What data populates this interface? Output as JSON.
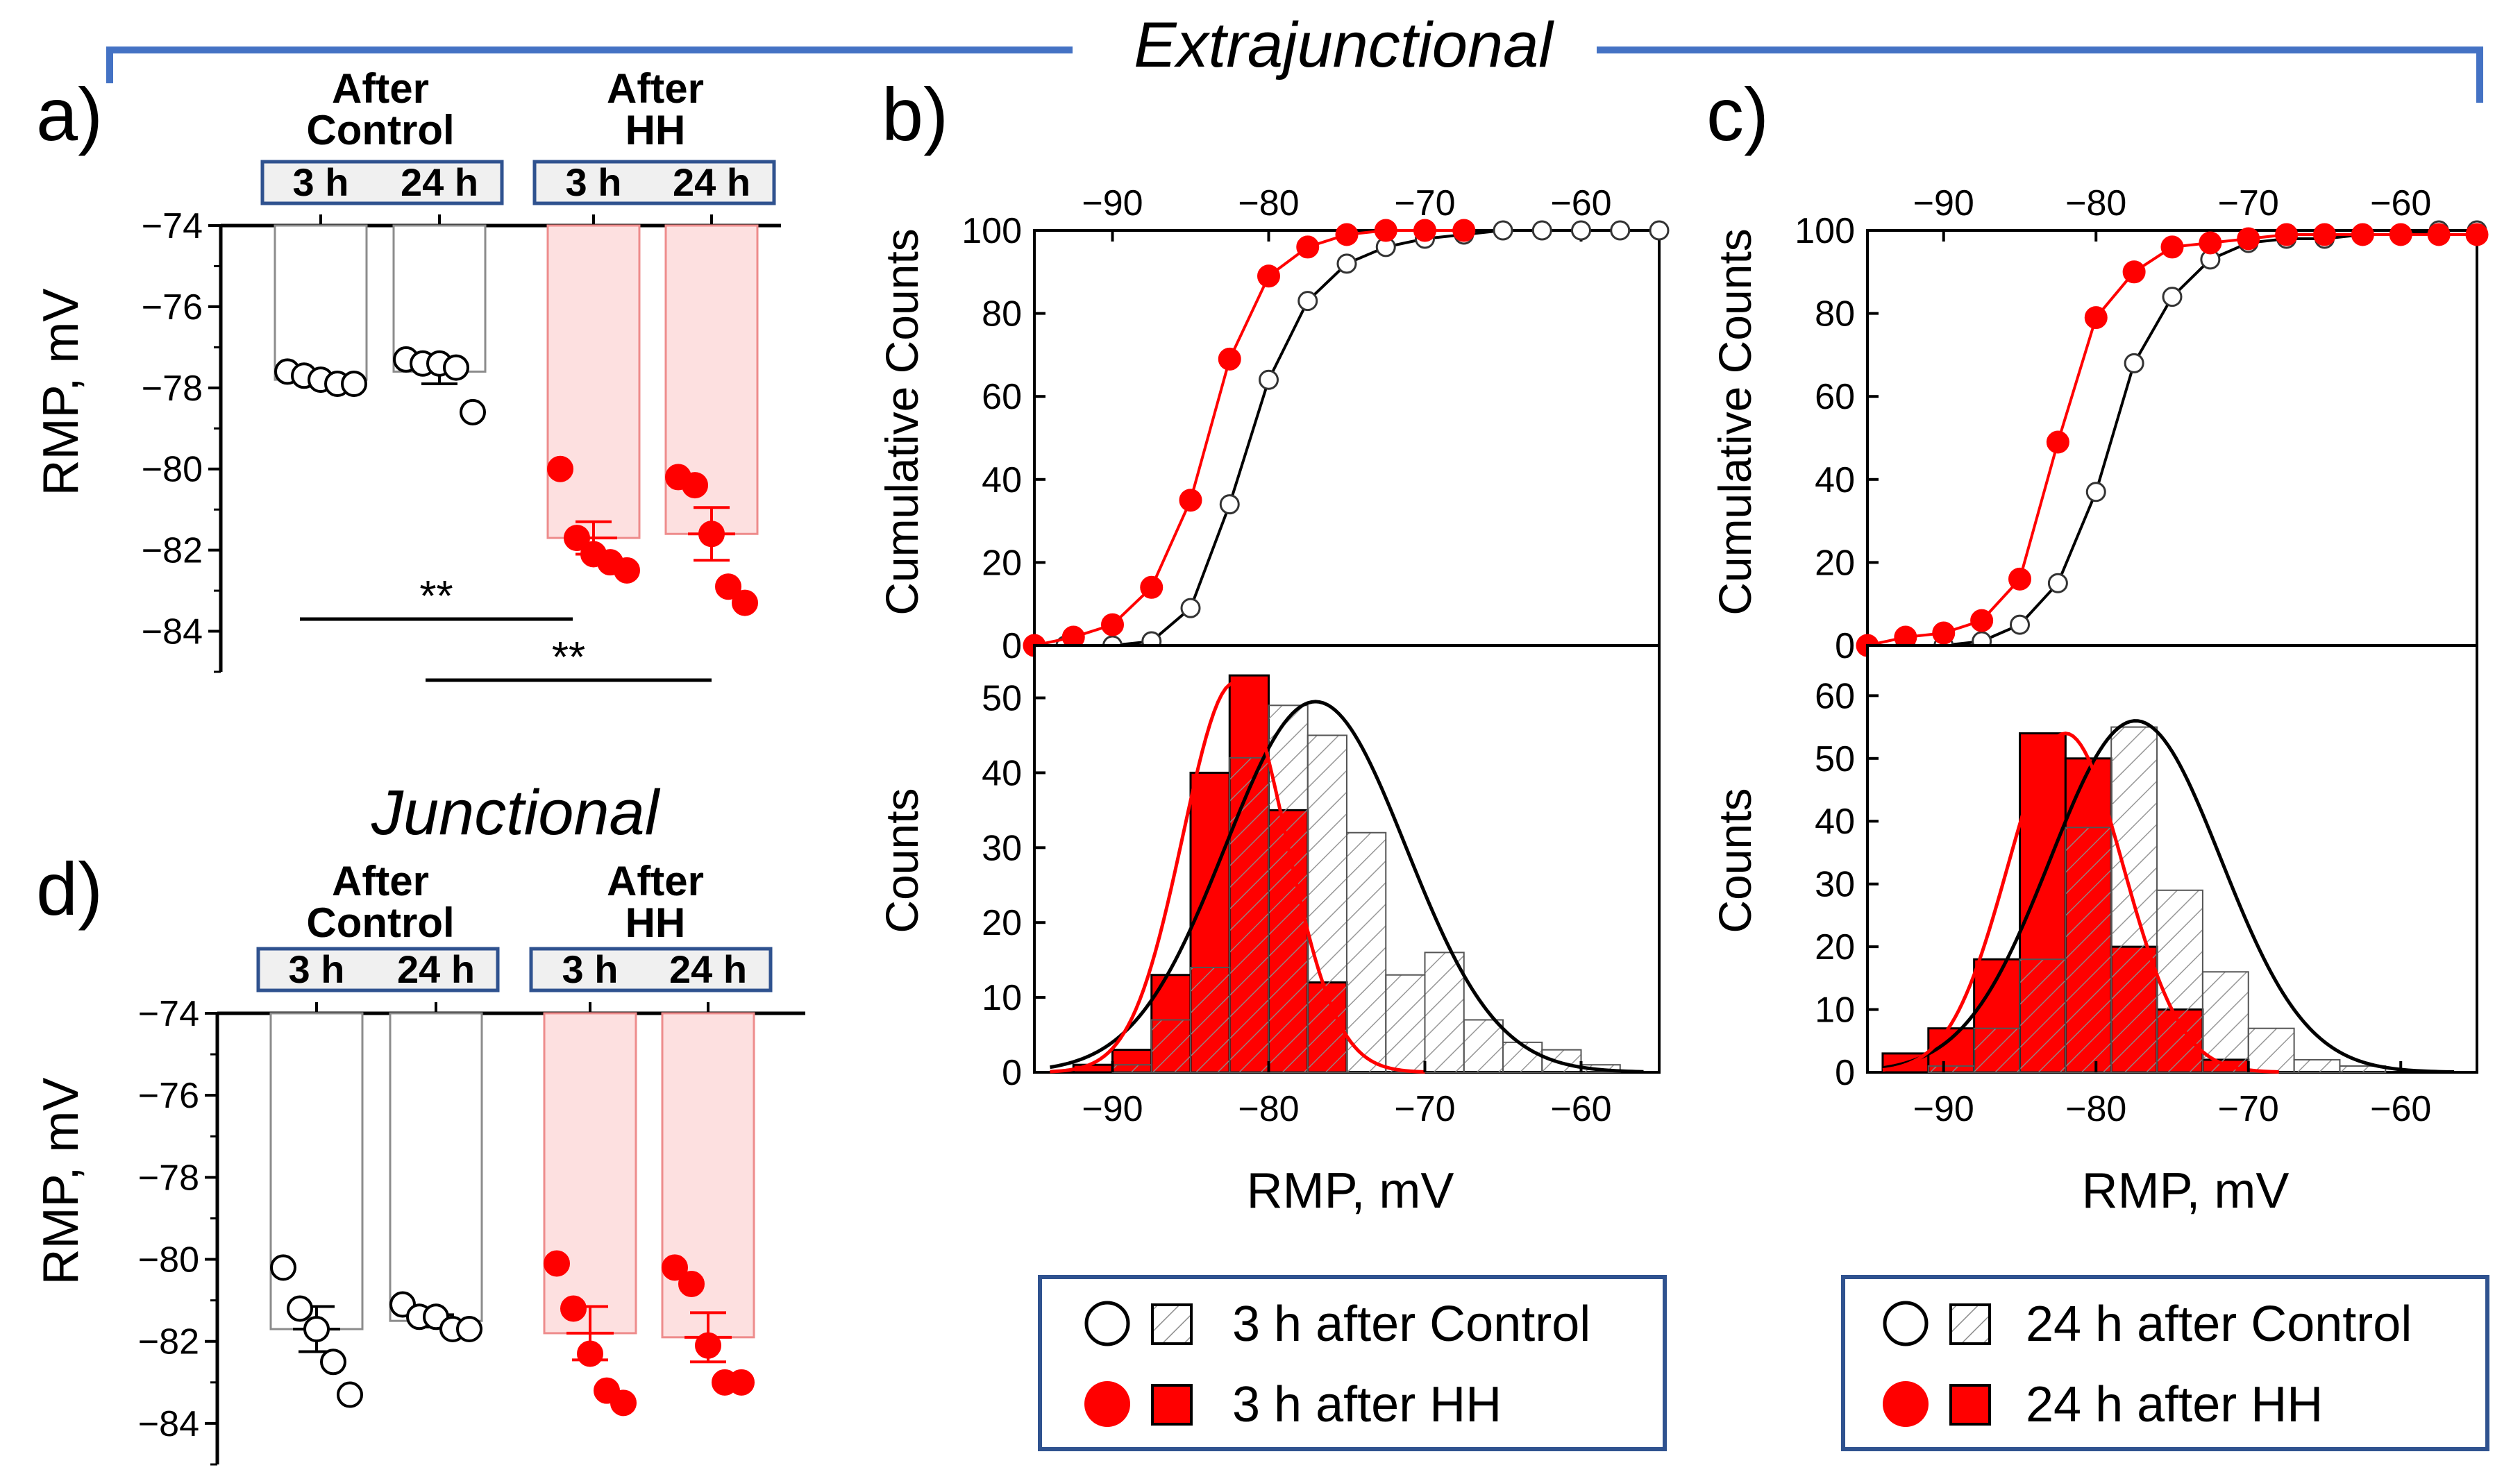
{
  "header": {
    "extrajunctional_title": "Extrajunctional",
    "junctional_title": "Junctional"
  },
  "colors": {
    "red": "#ff0000",
    "pink_fill": "#fde0e0",
    "pink_edge": "#ee8c8c",
    "bracket_blue": "#4472c4",
    "box_blue": "#2f528f",
    "box_fill": "#f0f0f0",
    "hatch_gray": "#8c8c8c",
    "black": "#000000"
  },
  "chart_data": [
    {
      "id": "a",
      "panel_label": "a)",
      "type": "bar",
      "ylabel": "RMP, mV",
      "ylim": [
        -85,
        -74
      ],
      "yticks": [
        -74,
        -76,
        -78,
        -80,
        -82,
        -84
      ],
      "group_titles": [
        {
          "line1": "After",
          "line2": "Control"
        },
        {
          "line1": "After",
          "line2": "HH"
        }
      ],
      "time_labels": [
        "3 h",
        "24 h"
      ],
      "bars": [
        {
          "group": "After Control",
          "time": "3 h",
          "mean": -77.8,
          "sem": 0.1,
          "points": [
            -77.6,
            -77.7,
            -77.8,
            -77.9,
            -77.9
          ],
          "filled": false
        },
        {
          "group": "After Control",
          "time": "24 h",
          "mean": -77.6,
          "sem": 0.3,
          "points": [
            -77.3,
            -77.4,
            -77.4,
            -77.5,
            -78.6
          ],
          "filled": false
        },
        {
          "group": "After HH",
          "time": "3 h",
          "mean": -81.7,
          "sem": 0.4,
          "points": [
            -80.0,
            -81.7,
            -82.1,
            -82.3,
            -82.5
          ],
          "filled": true
        },
        {
          "group": "After HH",
          "time": "24 h",
          "mean": -81.6,
          "sem": 0.65,
          "points": [
            -80.2,
            -80.4,
            -81.6,
            -82.9,
            -83.3
          ],
          "filled": true
        }
      ],
      "significance": [
        {
          "label": "**",
          "from": 0,
          "to": 2
        },
        {
          "label": "**",
          "from": 1,
          "to": 3
        }
      ]
    },
    {
      "id": "b_top",
      "panel_label": "b)",
      "type": "line",
      "xlabel": "RMP, mV",
      "ylabel": "Cumulative Counts",
      "xlim": [
        -95,
        -55
      ],
      "ylim": [
        0,
        100
      ],
      "xticks": [
        -90,
        -80,
        -70,
        -60
      ],
      "yticks": [
        0,
        20,
        40,
        60,
        80,
        100
      ],
      "series": [
        {
          "name": "3 h after Control",
          "color": "#000000",
          "filled": false,
          "x": [
            -93,
            -90,
            -87.5,
            -85,
            -82.5,
            -80,
            -77.5,
            -75,
            -72.5,
            -70,
            -67.5,
            -65,
            -62.5,
            -60,
            -57.5,
            -55
          ],
          "y": [
            0,
            0,
            1,
            9,
            34,
            64,
            83,
            92,
            96,
            98,
            99,
            100,
            100,
            100,
            100,
            100
          ]
        },
        {
          "name": "3 h after HH",
          "color": "#ff0000",
          "filled": true,
          "x": [
            -95,
            -92.5,
            -90,
            -87.5,
            -85,
            -82.5,
            -80,
            -77.5,
            -75,
            -72.5,
            -70,
            -67.5
          ],
          "y": [
            0,
            2,
            5,
            14,
            35,
            69,
            89,
            96,
            99,
            100,
            100,
            100
          ]
        }
      ]
    },
    {
      "id": "b_bottom",
      "type": "bar",
      "xlabel": "RMP, mV",
      "ylabel": "Counts",
      "xlim": [
        -95,
        -55
      ],
      "ylim": [
        0,
        57
      ],
      "xticks": [
        -90,
        -80,
        -70,
        -60
      ],
      "xtick_labels": [
        "−90",
        "−80",
        "−70",
        "−60"
      ],
      "yticks": [
        0,
        10,
        20,
        30,
        40,
        50
      ],
      "bin_edges": [
        -92.5,
        -90,
        -87.5,
        -85,
        -82.5,
        -80,
        -77.5,
        -75,
        -72.5,
        -70,
        -67.5,
        -65,
        -62.5,
        -60,
        -57.5,
        -55
      ],
      "series": [
        {
          "name": "3 h after Control",
          "style": "hatched",
          "values": [
            0,
            1,
            7,
            14,
            42,
            49,
            45,
            32,
            13,
            16,
            7,
            4,
            3,
            1,
            0
          ]
        },
        {
          "name": "3 h after HH",
          "style": "filled",
          "values": [
            1,
            3,
            13,
            40,
            53,
            35,
            12,
            0,
            0,
            0,
            0,
            0,
            0,
            0,
            0
          ]
        }
      ],
      "fits": [
        {
          "name": "3 h after Control",
          "color": "#000000",
          "mean": -77,
          "sd": 5.8,
          "peak": 49.5
        },
        {
          "name": "3 h after HH",
          "color": "#ff0000",
          "mean": -82.2,
          "sd": 3.3,
          "peak": 52
        }
      ]
    },
    {
      "id": "c_top",
      "panel_label": "c)",
      "type": "line",
      "xlabel": "RMP, mV",
      "ylabel": "Cumulative Counts",
      "xlim": [
        -95,
        -55
      ],
      "ylim": [
        0,
        100
      ],
      "xticks": [
        -90,
        -80,
        -70,
        -60
      ],
      "yticks": [
        0,
        20,
        40,
        60,
        80,
        100
      ],
      "series": [
        {
          "name": "24 h after Control",
          "color": "#000000",
          "filled": false,
          "x": [
            -92.5,
            -90,
            -87.5,
            -85,
            -82.5,
            -80,
            -77.5,
            -75,
            -72.5,
            -70,
            -67.5,
            -65,
            -62.5,
            -60,
            -57.5,
            -55
          ],
          "y": [
            0,
            0,
            1,
            5,
            15,
            37,
            68,
            84,
            93,
            97,
            98,
            98,
            99,
            99,
            100,
            100
          ]
        },
        {
          "name": "24 h after HH",
          "color": "#ff0000",
          "filled": true,
          "x": [
            -95,
            -92.5,
            -90,
            -87.5,
            -85,
            -82.5,
            -80,
            -77.5,
            -75,
            -72.5,
            -70,
            -67.5,
            -65,
            -62.5,
            -60,
            -57.5,
            -55
          ],
          "y": [
            0,
            2,
            3,
            6,
            16,
            49,
            79,
            90,
            96,
            97,
            98,
            99,
            99,
            99,
            99,
            99,
            99
          ]
        }
      ]
    },
    {
      "id": "c_bottom",
      "type": "bar",
      "xlabel": "RMP, mV",
      "ylabel": "Counts",
      "xlim": [
        -95,
        -55
      ],
      "ylim": [
        0,
        68
      ],
      "xticks": [
        -90,
        -80,
        -70,
        -60
      ],
      "xtick_labels": [
        "−90",
        "−80",
        "−70",
        "−60"
      ],
      "yticks": [
        0,
        10,
        20,
        30,
        40,
        50,
        60
      ],
      "bin_edges": [
        -94,
        -91,
        -88,
        -85,
        -82,
        -79,
        -76,
        -73,
        -70,
        -67,
        -64,
        -61,
        -58
      ],
      "series": [
        {
          "name": "24 h after Control",
          "style": "hatched",
          "values": [
            0,
            1,
            7,
            18,
            39,
            55,
            29,
            16,
            7,
            2,
            1,
            0
          ]
        },
        {
          "name": "24 h after HH",
          "style": "filled",
          "values": [
            3,
            7,
            18,
            54,
            50,
            20,
            10,
            2,
            0,
            0,
            0,
            0
          ]
        }
      ],
      "fits": [
        {
          "name": "24 h after Control",
          "color": "#000000",
          "mean": -77.4,
          "sd": 5.6,
          "peak": 56
        },
        {
          "name": "24 h after HH",
          "color": "#ff0000",
          "mean": -82,
          "sd": 3.8,
          "peak": 54
        }
      ]
    },
    {
      "id": "d",
      "panel_label": "d)",
      "type": "bar",
      "ylabel": "RMP, mV",
      "ylim": [
        -85,
        -74
      ],
      "yticks": [
        -74,
        -76,
        -78,
        -80,
        -82,
        -84
      ],
      "group_titles": [
        {
          "line1": "After",
          "line2": "Control"
        },
        {
          "line1": "After",
          "line2": "HH"
        }
      ],
      "time_labels": [
        "3 h",
        "24 h"
      ],
      "bars": [
        {
          "group": "After Control",
          "time": "3 h",
          "mean": -81.7,
          "sem": 0.55,
          "points": [
            -80.2,
            -81.2,
            -81.7,
            -82.5,
            -83.3
          ],
          "filled": false
        },
        {
          "group": "After Control",
          "time": "24 h",
          "mean": -81.5,
          "sem": 0.15,
          "points": [
            -81.1,
            -81.4,
            -81.4,
            -81.7,
            -81.7
          ],
          "filled": false
        },
        {
          "group": "After HH",
          "time": "3 h",
          "mean": -81.8,
          "sem": 0.65,
          "points": [
            -80.1,
            -81.2,
            -82.3,
            -83.2,
            -83.5
          ],
          "filled": true
        },
        {
          "group": "After HH",
          "time": "24 h",
          "mean": -81.9,
          "sem": 0.6,
          "points": [
            -80.2,
            -80.6,
            -82.1,
            -83.0,
            -83.0
          ],
          "filled": true
        }
      ],
      "significance": []
    }
  ],
  "legends": [
    {
      "id": "legend-b",
      "entries": [
        {
          "marker": "open-circle",
          "swatch": "hatched",
          "label": "3 h after Control"
        },
        {
          "marker": "red-circle",
          "swatch": "filled",
          "label": "3 h after HH"
        }
      ]
    },
    {
      "id": "legend-c",
      "entries": [
        {
          "marker": "open-circle",
          "swatch": "hatched",
          "label": "24 h after Control"
        },
        {
          "marker": "red-circle",
          "swatch": "filled",
          "label": "24 h after HH"
        }
      ]
    }
  ]
}
